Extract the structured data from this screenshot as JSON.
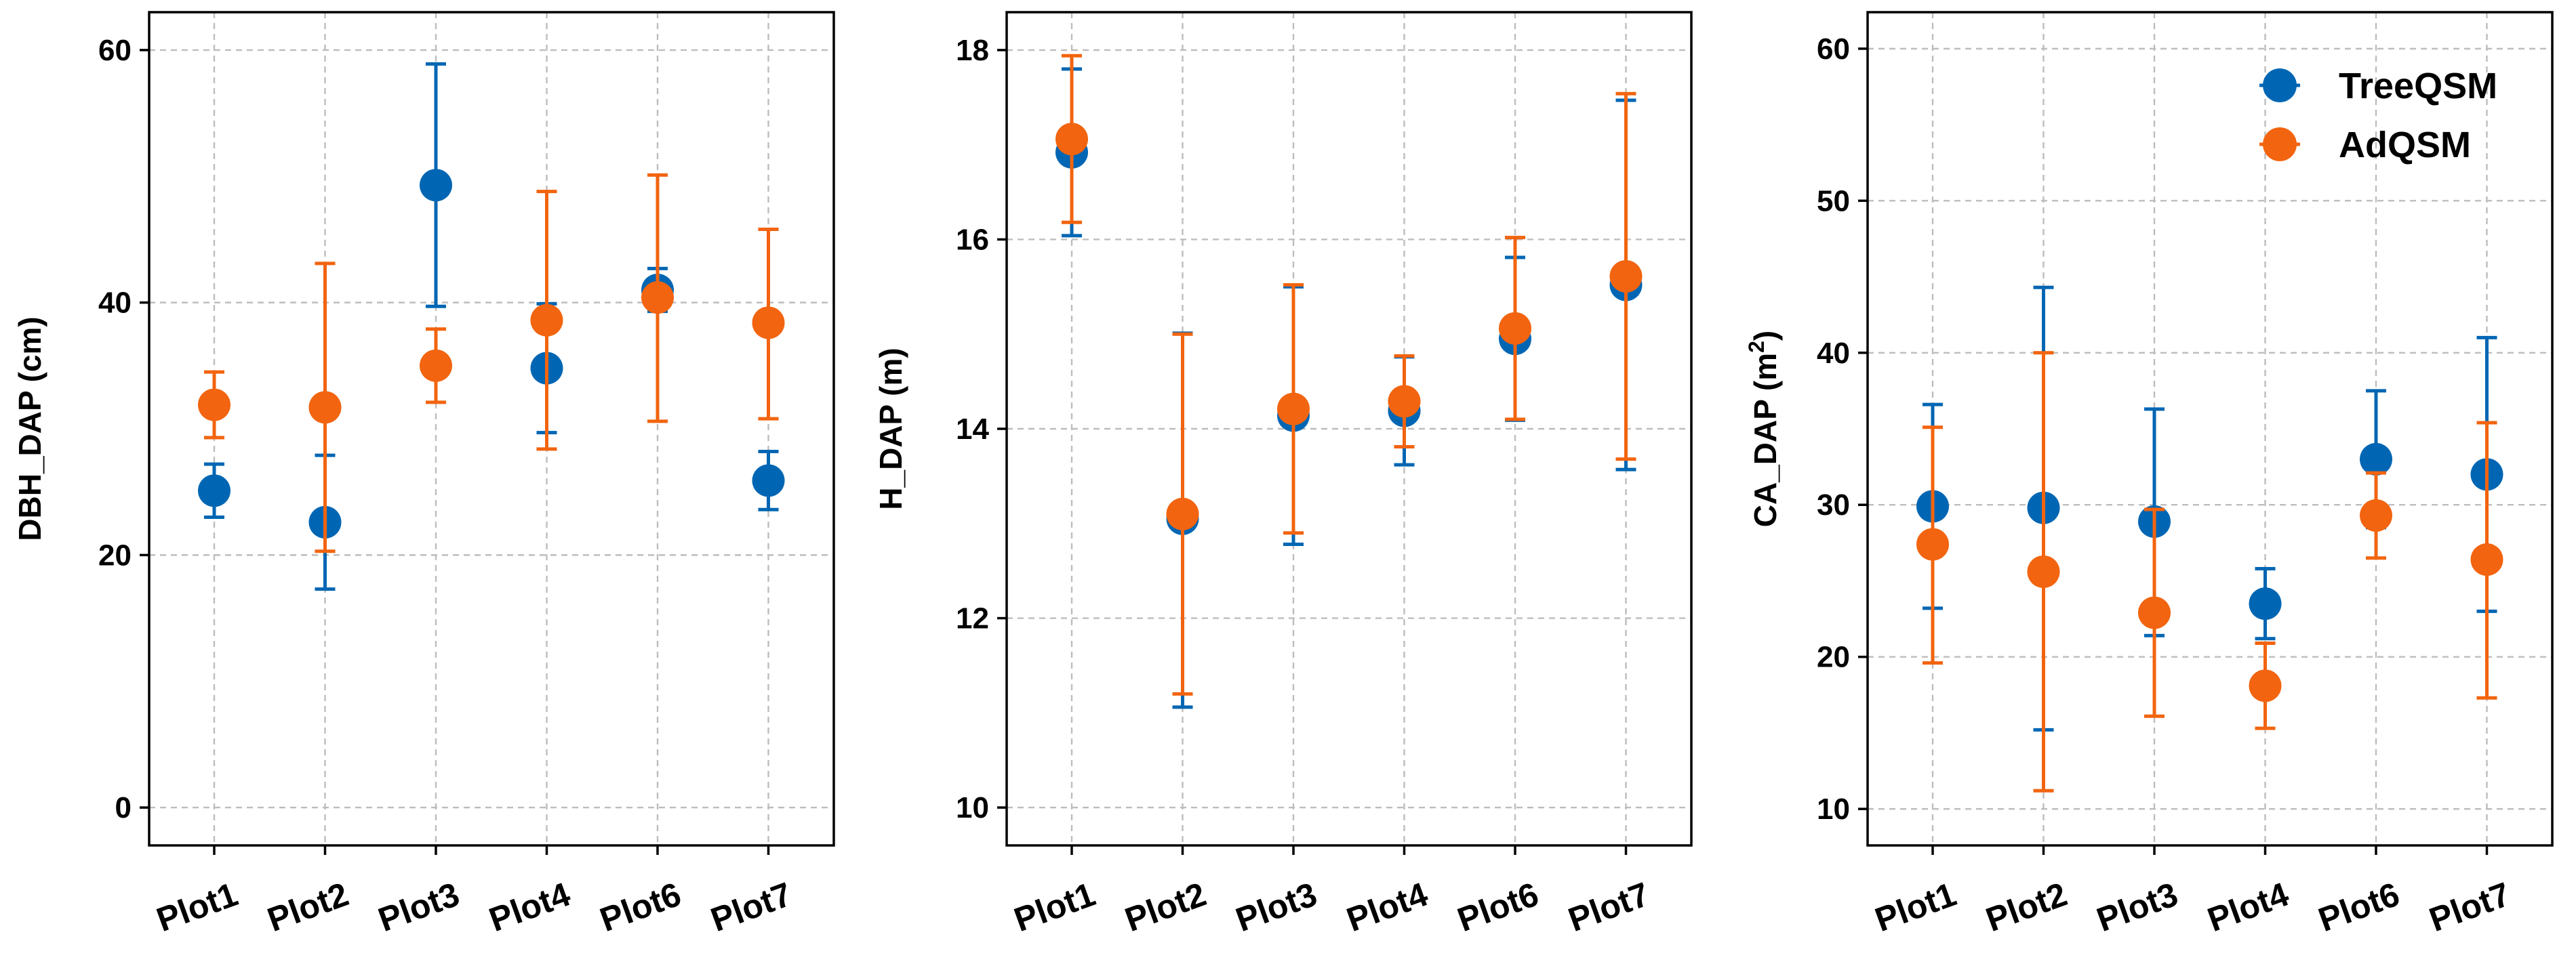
{
  "colors": {
    "TreeQSM": "#0066b3",
    "AdQSM": "#f2640f"
  },
  "legend": {
    "items": [
      "TreeQSM",
      "AdQSM"
    ]
  },
  "chart_data": [
    {
      "type": "scatter",
      "ylabel": "DBH_DAP (cm)",
      "ylabel_sup": "",
      "ylabel_end": "",
      "ylim": [
        -3,
        63
      ],
      "yticks": [
        0,
        20,
        40,
        60
      ],
      "categories": [
        "Plot1",
        "Plot2",
        "Plot3",
        "Plot4",
        "Plot6",
        "Plot7"
      ],
      "series": [
        {
          "name": "TreeQSM",
          "values": [
            25.1,
            22.6,
            49.3,
            34.8,
            41.0,
            25.9
          ],
          "err_low": [
            23.0,
            17.3,
            39.7,
            29.7,
            39.3,
            23.6
          ],
          "err_high": [
            27.2,
            27.9,
            58.9,
            39.9,
            42.7,
            28.2
          ]
        },
        {
          "name": "AdQSM",
          "values": [
            31.9,
            31.7,
            35.0,
            38.6,
            40.4,
            38.4
          ],
          "err_low": [
            29.3,
            20.3,
            32.1,
            28.4,
            30.6,
            30.8
          ],
          "err_high": [
            34.5,
            43.1,
            37.9,
            48.8,
            50.1,
            45.8
          ]
        }
      ]
    },
    {
      "type": "scatter",
      "ylabel": "H_DAP (m)",
      "ylabel_sup": "",
      "ylabel_end": "",
      "ylim": [
        9.6,
        18.4
      ],
      "yticks": [
        10,
        12,
        14,
        16,
        18
      ],
      "categories": [
        "Plot1",
        "Plot2",
        "Plot3",
        "Plot4",
        "Plot6",
        "Plot7"
      ],
      "series": [
        {
          "name": "TreeQSM",
          "values": [
            16.92,
            13.05,
            14.14,
            14.19,
            14.95,
            15.52
          ],
          "err_low": [
            16.04,
            11.06,
            12.78,
            13.62,
            14.09,
            13.57
          ],
          "err_high": [
            17.8,
            15.01,
            15.5,
            14.76,
            15.81,
            17.47
          ]
        },
        {
          "name": "AdQSM",
          "values": [
            17.06,
            13.1,
            14.21,
            14.29,
            15.06,
            15.61
          ],
          "err_low": [
            16.18,
            11.2,
            12.9,
            13.81,
            14.1,
            13.68
          ],
          "err_high": [
            17.94,
            15.0,
            15.52,
            14.77,
            16.02,
            17.54
          ]
        }
      ]
    },
    {
      "type": "scatter",
      "ylabel": "CA_DAP (m",
      "ylabel_sup": "2",
      "ylabel_end": ")",
      "ylim": [
        7.6,
        62.4
      ],
      "yticks": [
        10,
        20,
        30,
        40,
        50,
        60
      ],
      "categories": [
        "Plot1",
        "Plot2",
        "Plot3",
        "Plot4",
        "Plot6",
        "Plot7"
      ],
      "series": [
        {
          "name": "TreeQSM",
          "values": [
            29.9,
            29.8,
            28.9,
            23.5,
            33.0,
            32.0
          ],
          "err_low": [
            23.2,
            15.2,
            21.4,
            21.2,
            28.5,
            23.0
          ],
          "err_high": [
            36.6,
            44.3,
            36.3,
            25.8,
            37.5,
            41.0
          ]
        },
        {
          "name": "AdQSM",
          "values": [
            27.4,
            25.6,
            22.9,
            18.1,
            29.3,
            26.4
          ],
          "err_low": [
            19.6,
            11.2,
            16.1,
            15.3,
            26.5,
            17.3
          ],
          "err_high": [
            35.1,
            40.0,
            29.7,
            20.9,
            32.1,
            35.4
          ]
        }
      ]
    }
  ]
}
